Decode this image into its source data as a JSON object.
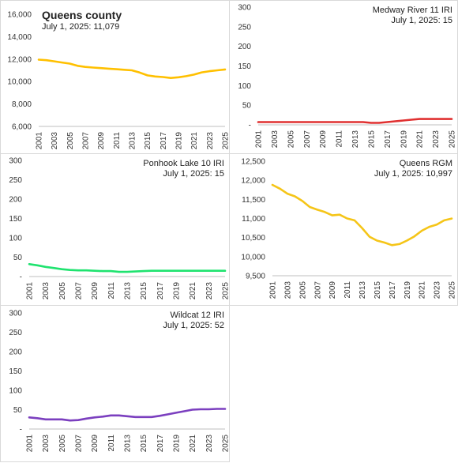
{
  "years_note": "",
  "chart_data": [
    {
      "type": "line",
      "title": "Queens county",
      "subtitle": "July 1, 2025: 11,079",
      "title_align": "left",
      "title_bold": true,
      "color": "#FFC000",
      "x": [
        2001,
        2002,
        2003,
        2004,
        2005,
        2006,
        2007,
        2008,
        2009,
        2010,
        2011,
        2012,
        2013,
        2014,
        2015,
        2016,
        2017,
        2018,
        2019,
        2020,
        2021,
        2022,
        2023,
        2024,
        2025
      ],
      "x_ticks": [
        "2001",
        "2003",
        "2005",
        "2007",
        "2009",
        "2011",
        "2013",
        "2015",
        "2017",
        "2019",
        "2021",
        "2023",
        "2025"
      ],
      "values": [
        11950,
        11900,
        11800,
        11700,
        11600,
        11400,
        11300,
        11250,
        11200,
        11150,
        11100,
        11050,
        11000,
        10800,
        10550,
        10450,
        10400,
        10320,
        10380,
        10480,
        10620,
        10820,
        10920,
        11000,
        11079
      ],
      "ylim": [
        6000,
        16000
      ],
      "y_ticks": [
        6000,
        8000,
        10000,
        12000,
        14000,
        16000
      ],
      "y_tick_labels": [
        "6,000",
        "8,000",
        "10,000",
        "12,000",
        "14,000",
        "16,000"
      ]
    },
    {
      "type": "line",
      "title": "Medway River 11  IRI",
      "subtitle": "July 1, 2025: 15",
      "title_align": "right",
      "title_bold": false,
      "color": "#E03030",
      "x": [
        2001,
        2002,
        2003,
        2004,
        2005,
        2006,
        2007,
        2008,
        2009,
        2010,
        2011,
        2012,
        2013,
        2014,
        2015,
        2016,
        2017,
        2018,
        2019,
        2020,
        2021,
        2022,
        2023,
        2024,
        2025
      ],
      "x_ticks": [
        "2001",
        "2003",
        "2005",
        "2007",
        "2009",
        "2011",
        "2013",
        "2015",
        "2017",
        "2019",
        "2021",
        "2023",
        "2025"
      ],
      "values": [
        7,
        7,
        7,
        7,
        7,
        7,
        7,
        7,
        7,
        7,
        7,
        7,
        7,
        7,
        5,
        5,
        7,
        9,
        11,
        13,
        15,
        15,
        15,
        15,
        15
      ],
      "ylim": [
        0,
        300
      ],
      "y_ticks": [
        0,
        50,
        100,
        150,
        200,
        250,
        300
      ],
      "y_tick_labels": [
        "-",
        "50",
        "100",
        "150",
        "200",
        "250",
        "300"
      ]
    },
    {
      "type": "line",
      "title": "Ponhook Lake 10  IRI",
      "subtitle": "July 1, 2025: 15",
      "title_align": "right",
      "title_bold": false,
      "color": "#1FE36F",
      "x": [
        2001,
        2002,
        2003,
        2004,
        2005,
        2006,
        2007,
        2008,
        2009,
        2010,
        2011,
        2012,
        2013,
        2014,
        2015,
        2016,
        2017,
        2018,
        2019,
        2020,
        2021,
        2022,
        2023,
        2024,
        2025
      ],
      "x_ticks": [
        "2001",
        "2003",
        "2005",
        "2007",
        "2009",
        "2011",
        "2013",
        "2015",
        "2017",
        "2019",
        "2021",
        "2023",
        "2025"
      ],
      "values": [
        32,
        29,
        25,
        22,
        19,
        17,
        16,
        16,
        15,
        14,
        14,
        12,
        12,
        13,
        14,
        15,
        15,
        15,
        15,
        15,
        15,
        15,
        15,
        15,
        15
      ],
      "ylim": [
        0,
        300
      ],
      "y_ticks": [
        0,
        50,
        100,
        150,
        200,
        250,
        300
      ],
      "y_tick_labels": [
        "-",
        "50",
        "100",
        "150",
        "200",
        "250",
        "300"
      ]
    },
    {
      "type": "line",
      "title": "Queens  RGM",
      "subtitle": "July 1, 2025: 10,997",
      "title_align": "right",
      "title_bold": false,
      "color": "#F5C518",
      "x": [
        2001,
        2002,
        2003,
        2004,
        2005,
        2006,
        2007,
        2008,
        2009,
        2010,
        2011,
        2012,
        2013,
        2014,
        2015,
        2016,
        2017,
        2018,
        2019,
        2020,
        2021,
        2022,
        2023,
        2024,
        2025
      ],
      "x_ticks": [
        "2001",
        "2003",
        "2005",
        "2007",
        "2009",
        "2011",
        "2013",
        "2015",
        "2017",
        "2019",
        "2021",
        "2023",
        "2025"
      ],
      "values": [
        11880,
        11780,
        11650,
        11580,
        11460,
        11300,
        11230,
        11170,
        11080,
        11100,
        11000,
        10950,
        10750,
        10520,
        10420,
        10370,
        10300,
        10330,
        10420,
        10530,
        10680,
        10780,
        10840,
        10950,
        10997
      ],
      "ylim": [
        9500,
        12500
      ],
      "y_ticks": [
        9500,
        10000,
        10500,
        11000,
        11500,
        12000,
        12500
      ],
      "y_tick_labels": [
        "9,500",
        "10,000",
        "10,500",
        "11,000",
        "11,500",
        "12,000",
        "12,500"
      ]
    },
    {
      "type": "line",
      "title": "Wildcat 12  IRI",
      "subtitle": "July 1, 2025: 52",
      "title_align": "right",
      "title_bold": false,
      "color": "#7B3FBF",
      "x": [
        2001,
        2002,
        2003,
        2004,
        2005,
        2006,
        2007,
        2008,
        2009,
        2010,
        2011,
        2012,
        2013,
        2014,
        2015,
        2016,
        2017,
        2018,
        2019,
        2020,
        2021,
        2022,
        2023,
        2024,
        2025
      ],
      "x_ticks": [
        "2001",
        "2003",
        "2005",
        "2007",
        "2009",
        "2011",
        "2013",
        "2015",
        "2017",
        "2019",
        "2021",
        "2023",
        "2025"
      ],
      "values": [
        30,
        28,
        25,
        25,
        25,
        22,
        23,
        27,
        30,
        32,
        35,
        35,
        33,
        31,
        31,
        31,
        34,
        38,
        42,
        46,
        50,
        51,
        51,
        52,
        52
      ],
      "ylim": [
        0,
        300
      ],
      "y_ticks": [
        0,
        50,
        100,
        150,
        200,
        250,
        300
      ],
      "y_tick_labels": [
        "-",
        "50",
        "100",
        "150",
        "200",
        "250",
        "300"
      ]
    }
  ]
}
